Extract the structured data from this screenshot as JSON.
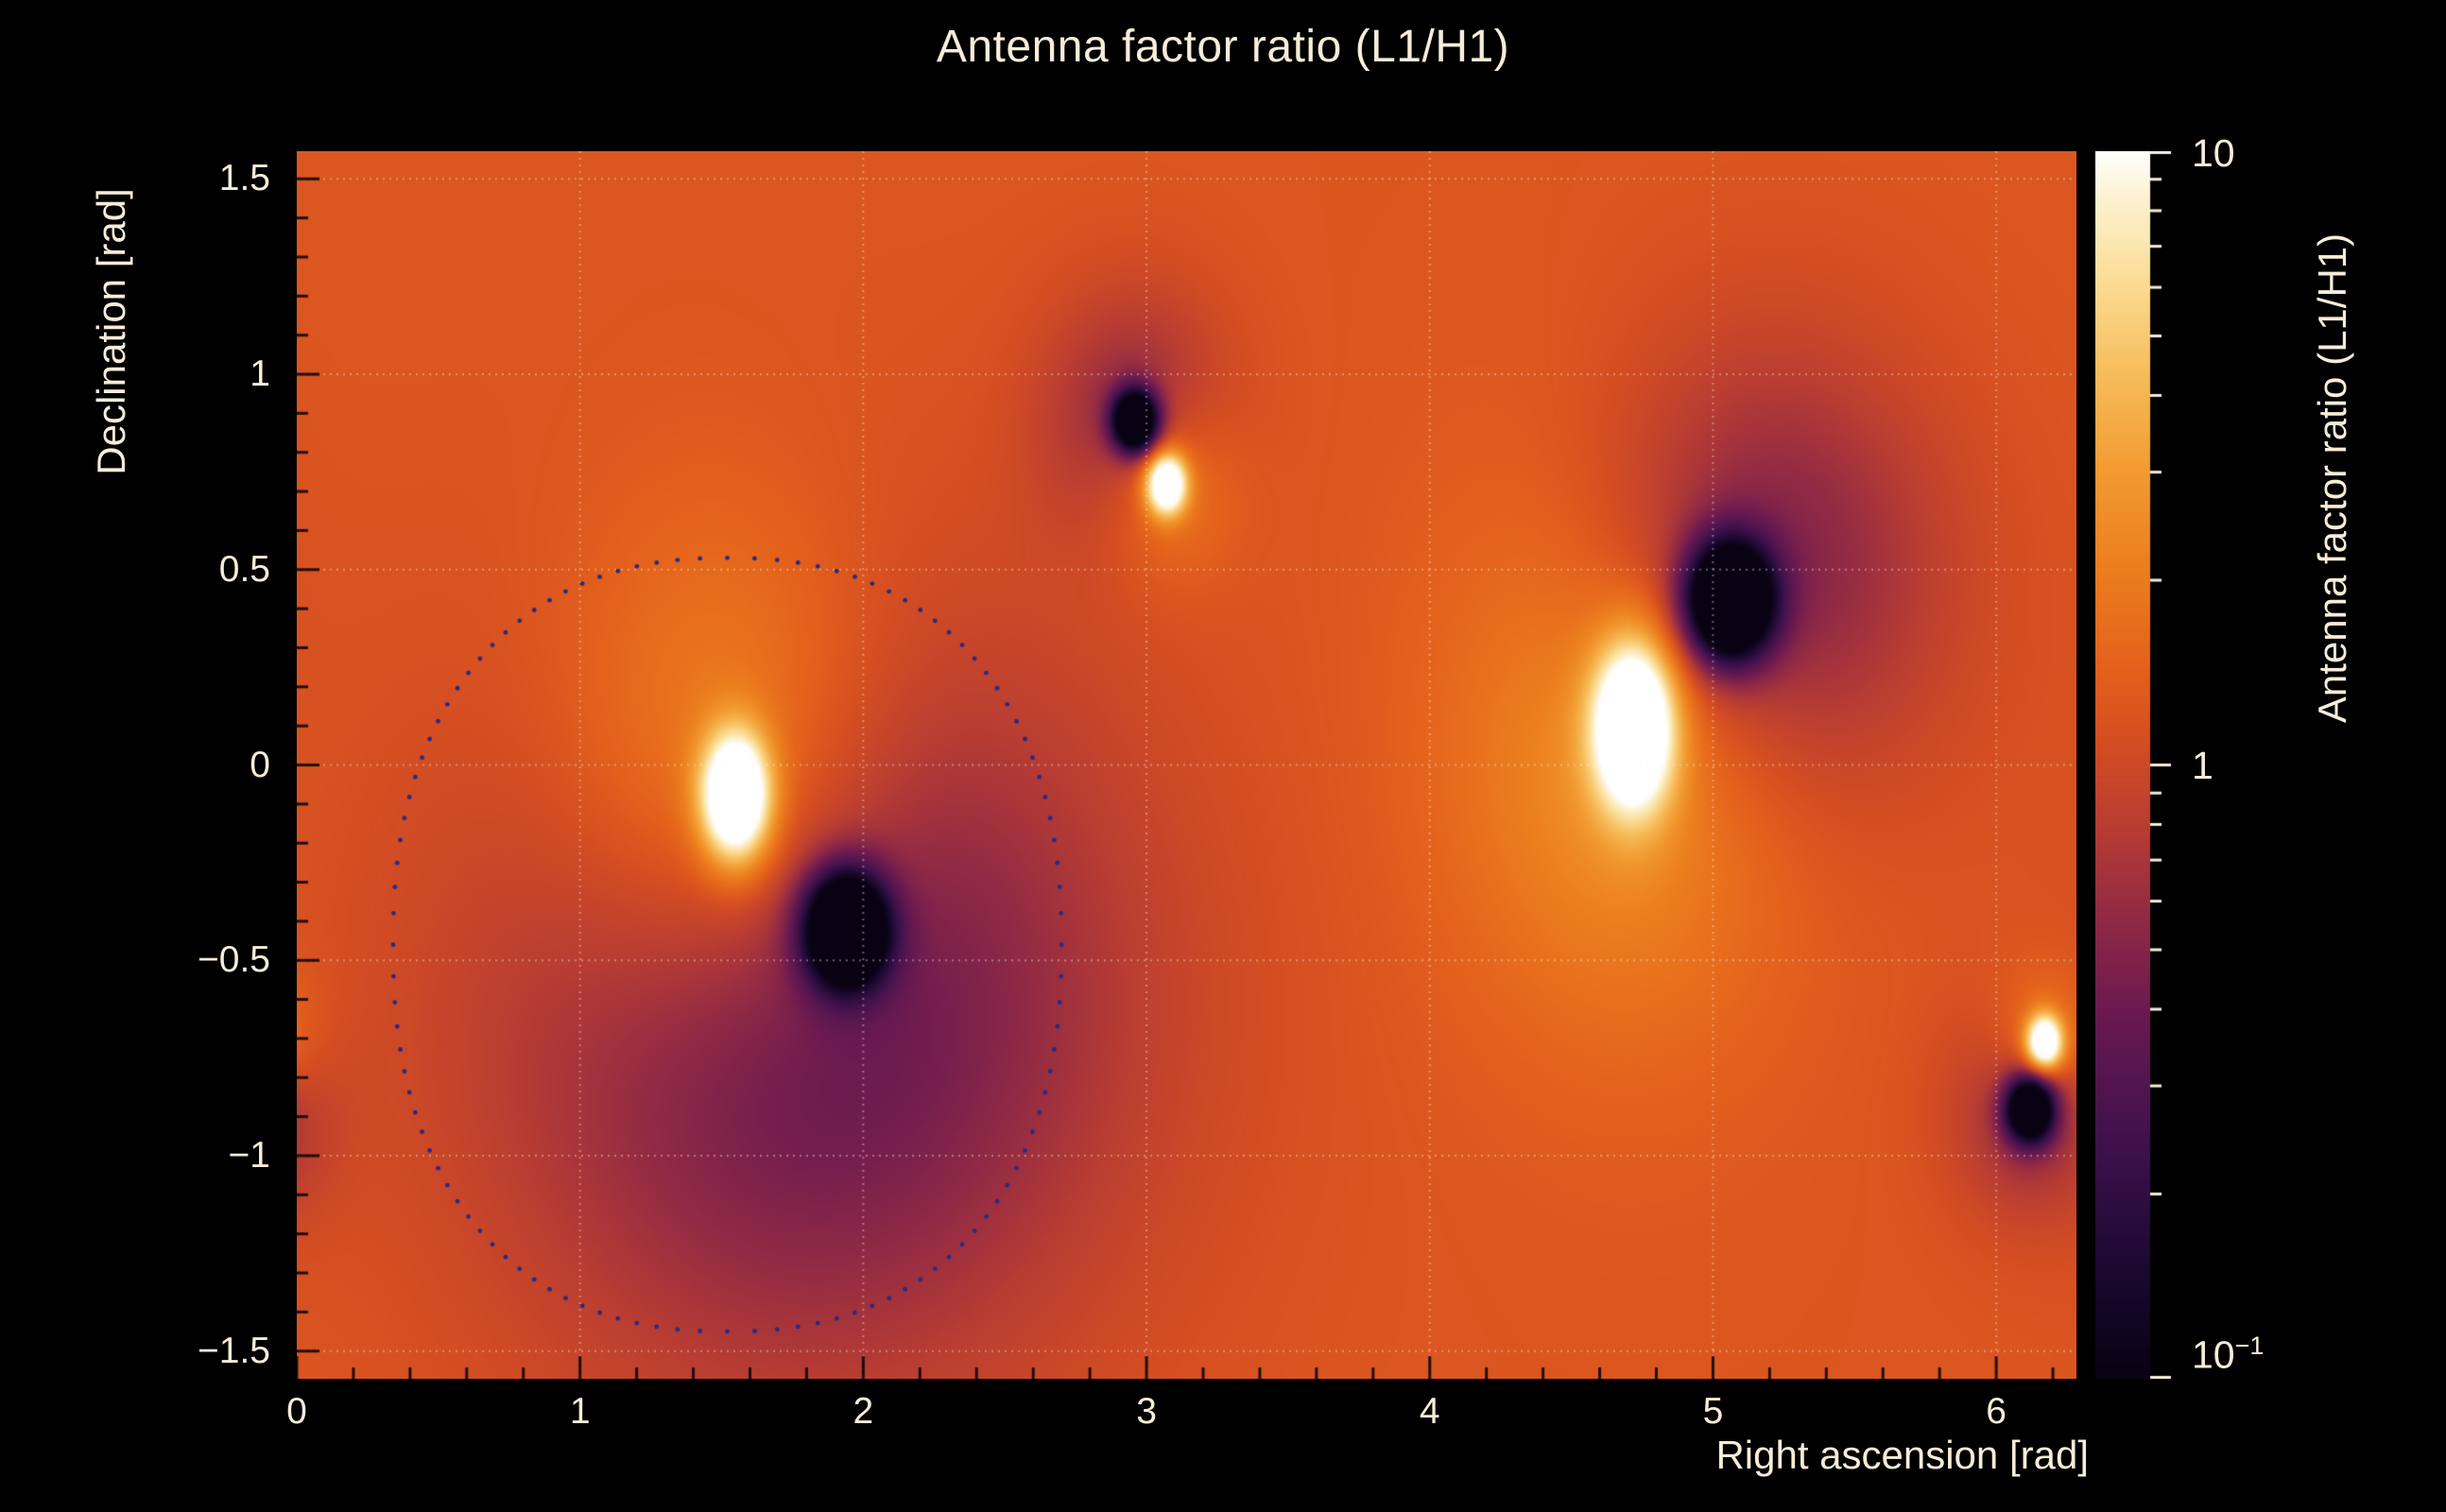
{
  "page": {
    "background": "#000000",
    "text_color": "#f6ecd9"
  },
  "chart_data": {
    "type": "heatmap",
    "title": "Antenna factor ratio (L1/H1)",
    "xlabel": "Right ascension [rad]",
    "ylabel": "Declination [rad]",
    "zlabel": "Antenna factor ratio (L1/H1)",
    "x_range": [
      0,
      6.28319
    ],
    "y_range": [
      -1.5708,
      1.5708
    ],
    "z_range": [
      0.1,
      10
    ],
    "z_scale": "log10",
    "grid": true,
    "grid_color": "rgba(255,243,224,0.4)",
    "x_ticks": [
      0,
      1,
      2,
      3,
      4,
      5,
      6
    ],
    "x_tick_labels": [
      "0",
      "1",
      "2",
      "3",
      "4",
      "5",
      "6"
    ],
    "y_ticks": [
      1.5,
      1,
      0.5,
      0,
      -0.5,
      -1,
      -1.5
    ],
    "y_tick_labels": [
      "1.5",
      "1",
      "0.5",
      "0",
      "−0.5",
      "−1",
      "−1.5"
    ],
    "background_log10": 0.09,
    "features": [
      {
        "kind": "peak-core",
        "x": 1.55,
        "y": -0.08,
        "amp": 1.55,
        "sx": 0.085,
        "sy": 0.115
      },
      {
        "kind": "peak-halo",
        "x": 1.52,
        "y": -0.05,
        "amp": 0.5,
        "sx": 0.42,
        "sy": 0.46
      },
      {
        "kind": "null-core",
        "x": 1.94,
        "y": -0.42,
        "amp": -1.9,
        "sx": 0.1,
        "sy": 0.1
      },
      {
        "kind": "null-halo",
        "x": 1.8,
        "y": -0.6,
        "amp": -0.6,
        "sx": 0.75,
        "sy": 0.65
      },
      {
        "kind": "null-core",
        "x": 2.96,
        "y": 0.88,
        "amp": -1.7,
        "sx": 0.055,
        "sy": 0.055
      },
      {
        "kind": "null-halo",
        "x": 2.96,
        "y": 0.88,
        "amp": -0.4,
        "sx": 0.22,
        "sy": 0.22
      },
      {
        "kind": "peak-core",
        "x": 3.07,
        "y": 0.72,
        "amp": 1.4,
        "sx": 0.05,
        "sy": 0.055
      },
      {
        "kind": "peak-halo",
        "x": 3.07,
        "y": 0.72,
        "amp": 0.35,
        "sx": 0.17,
        "sy": 0.17
      },
      {
        "kind": "null-core",
        "x": 5.06,
        "y": 0.42,
        "amp": -1.9,
        "sx": 0.105,
        "sy": 0.105
      },
      {
        "kind": "null-halo",
        "x": 5.1,
        "y": 0.48,
        "amp": -0.55,
        "sx": 0.45,
        "sy": 0.4
      },
      {
        "kind": "peak-core",
        "x": 4.72,
        "y": 0.1,
        "amp": 1.55,
        "sx": 0.1,
        "sy": 0.15
      },
      {
        "kind": "peak-halo",
        "x": 4.7,
        "y": 0.12,
        "amp": 0.45,
        "sx": 0.42,
        "sy": 0.5
      },
      {
        "kind": "null-core",
        "x": 6.12,
        "y": -0.88,
        "amp": -1.6,
        "sx": 0.06,
        "sy": 0.06
      },
      {
        "kind": "null-halo",
        "x": 6.12,
        "y": -0.88,
        "amp": -0.35,
        "sx": 0.19,
        "sy": 0.19
      },
      {
        "kind": "peak-core",
        "x": 6.17,
        "y": -0.71,
        "amp": 1.35,
        "sx": 0.045,
        "sy": 0.05
      },
      {
        "kind": "peak-halo",
        "x": 6.17,
        "y": -0.71,
        "amp": 0.3,
        "sx": 0.14,
        "sy": 0.14
      }
    ],
    "contour": {
      "cx": 1.52,
      "cy": -0.46,
      "rx": 1.18,
      "ry": 0.99,
      "squareness": 2.3,
      "dots": 112,
      "dot_radius": 2.4,
      "color": "#262a85"
    },
    "colorbar": {
      "major_ticks": [
        10,
        1,
        0.1
      ],
      "minor_decades": [
        0,
        -1
      ]
    },
    "colormap": [
      {
        "t": 0.0,
        "c": "#080212"
      },
      {
        "t": 0.1,
        "c": "#1e0a35"
      },
      {
        "t": 0.2,
        "c": "#43124e"
      },
      {
        "t": 0.3,
        "c": "#6b1a50"
      },
      {
        "t": 0.38,
        "c": "#932b44"
      },
      {
        "t": 0.45,
        "c": "#b93d32"
      },
      {
        "t": 0.52,
        "c": "#d54e22"
      },
      {
        "t": 0.58,
        "c": "#e4621c"
      },
      {
        "t": 0.66,
        "c": "#ec7e1e"
      },
      {
        "t": 0.74,
        "c": "#f29c32"
      },
      {
        "t": 0.82,
        "c": "#f7bd5c"
      },
      {
        "t": 0.9,
        "c": "#fbdf9a"
      },
      {
        "t": 0.96,
        "c": "#fdf2cf"
      },
      {
        "t": 1.0,
        "c": "#ffffff"
      }
    ]
  },
  "colorbar": {
    "top_label": "10",
    "mid_label": "1",
    "bottom_label_base": "10",
    "bottom_label_exp": "−1"
  }
}
